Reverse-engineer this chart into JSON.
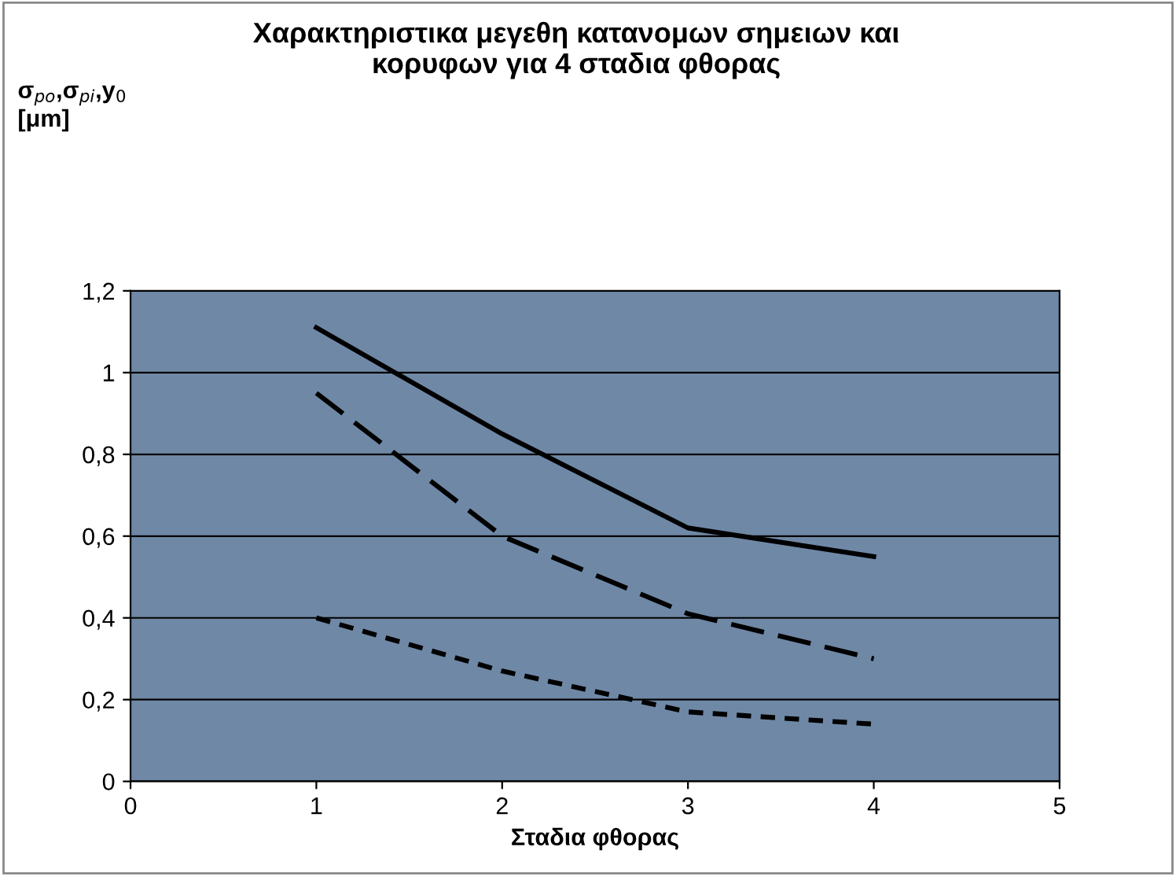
{
  "chart_data": {
    "type": "line",
    "title": "Χαρακτηριστικα μεγεθη κατανομων σημειων και\nκορυφων για 4 σταδια φθορας",
    "xlabel": "Σταδια φθορας",
    "ylabel": "σ$_{po}$,σ$_{pi}$,y$_{0}$\n[μm]",
    "x": [
      1,
      2,
      3,
      4
    ],
    "series": [
      {
        "color": "#000000",
        "line_style": "solid",
        "values": [
          1.11,
          0.85,
          0.62,
          0.55
        ]
      },
      {
        "color": "#000000",
        "line_style": "dashed",
        "values": [
          0.95,
          0.6,
          0.41,
          0.3
        ]
      },
      {
        "color": "#000000",
        "line_style": "dotted",
        "values": [
          0.4,
          0.27,
          0.17,
          0.14
        ]
      }
    ],
    "xlim": [
      0,
      5
    ],
    "xticks": [
      0,
      1,
      2,
      3,
      4,
      5
    ],
    "ylim": [
      0,
      1.2
    ],
    "yticks": [
      0,
      {
        "value": 0.2,
        "label": "0,2"
      },
      {
        "value": 0.4,
        "label": "0,4"
      },
      {
        "value": 0.6,
        "label": "0,6"
      },
      {
        "value": 0.8,
        "label": "0,8"
      },
      1,
      {
        "value": 1.2,
        "label": "1,2"
      }
    ],
    "grid": "y",
    "marker": "none"
  }
}
